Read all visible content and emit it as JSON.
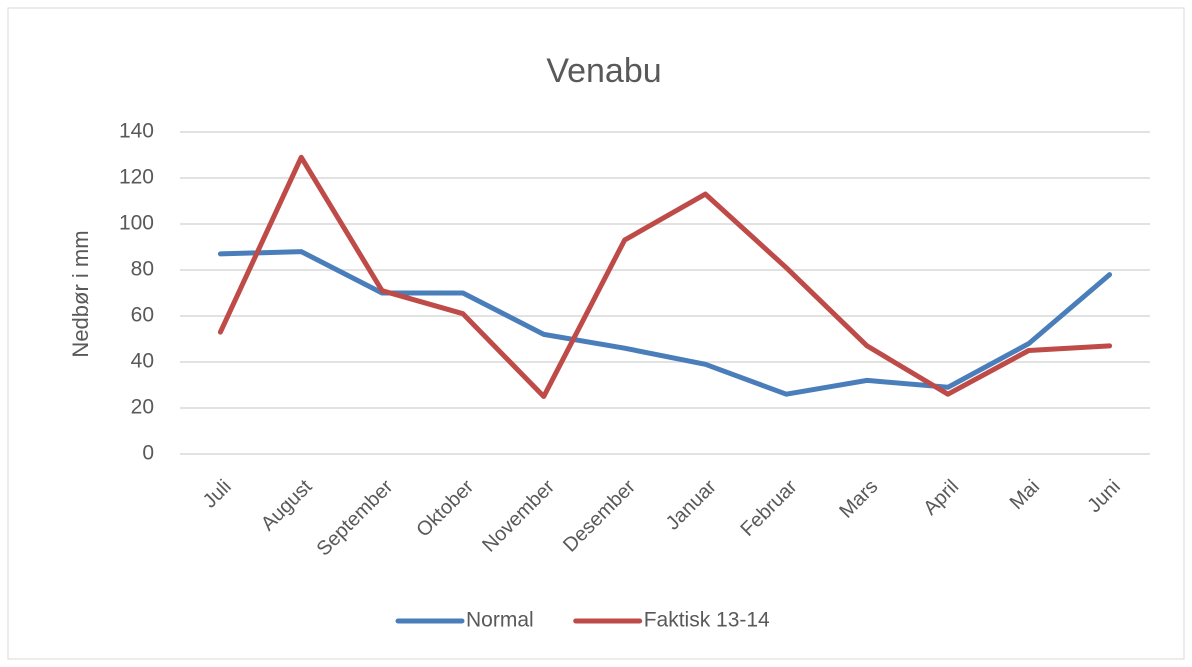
{
  "chart_data": {
    "type": "line",
    "title": "Venabu",
    "y_label": "Nedbør i mm",
    "categories": [
      "Juli",
      "August",
      "September",
      "Oktober",
      "November",
      "Desember",
      "Januar",
      "Februar",
      "Mars",
      "April",
      "Mai",
      "Juni"
    ],
    "series": [
      {
        "name": "Normal",
        "color": "#4a7ebb",
        "values": [
          87,
          88,
          70,
          70,
          52,
          46,
          39,
          26,
          32,
          29,
          48,
          78
        ]
      },
      {
        "name": "Faktisk 13-14",
        "color": "#be4b48",
        "values": [
          53,
          129,
          71,
          61,
          25,
          93,
          113,
          81,
          47,
          26,
          45,
          47
        ]
      }
    ],
    "ylim": [
      0,
      140
    ],
    "yticks": [
      0,
      20,
      40,
      60,
      80,
      100,
      120,
      140
    ],
    "grid": true,
    "legend": "bottom"
  }
}
